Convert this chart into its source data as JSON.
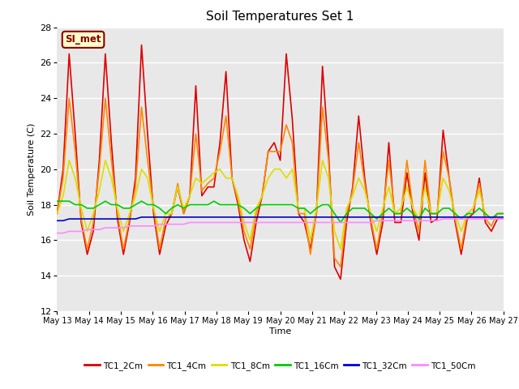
{
  "title": "Soil Temperatures Set 1",
  "xlabel": "Time",
  "ylabel": "Soil Temperature (C)",
  "ylim": [
    12,
    28
  ],
  "yticks": [
    12,
    14,
    16,
    18,
    20,
    22,
    24,
    26,
    28
  ],
  "x_labels": [
    "May 13",
    "May 14",
    "May 15",
    "May 16",
    "May 17",
    "May 18",
    "May 19",
    "May 20",
    "May 21",
    "May 22",
    "May 23",
    "May 24",
    "May 25",
    "May 26",
    "May 27"
  ],
  "annotation_text": "SI_met",
  "annotation_bg": "#ffffcc",
  "annotation_border": "#880000",
  "plot_bg": "#e8e8e8",
  "fig_bg": "#ffffff",
  "grid_color": "#ffffff",
  "series_colors": {
    "TC1_2Cm": "#dd0000",
    "TC1_4Cm": "#ff8800",
    "TC1_8Cm": "#dddd00",
    "TC1_16Cm": "#00cc00",
    "TC1_32Cm": "#0000cc",
    "TC1_50Cm": "#ff88ff"
  },
  "tc1_2cm": [
    17.5,
    20.0,
    26.5,
    22.0,
    17.0,
    15.2,
    16.5,
    20.5,
    26.5,
    21.5,
    17.2,
    15.2,
    17.0,
    19.5,
    27.0,
    22.0,
    17.5,
    15.2,
    16.8,
    17.5,
    19.0,
    17.5,
    18.5,
    24.7,
    18.5,
    19.0,
    19.0,
    21.5,
    25.5,
    19.5,
    18.0,
    16.0,
    14.8,
    17.0,
    18.5,
    21.0,
    21.5,
    20.5,
    26.5,
    22.8,
    17.5,
    17.0,
    15.5,
    17.5,
    25.8,
    21.0,
    14.5,
    13.8,
    17.0,
    19.0,
    23.0,
    19.5,
    17.0,
    15.2,
    17.0,
    21.5,
    17.0,
    17.0,
    19.8,
    17.5,
    16.0,
    19.8,
    17.0,
    17.2,
    22.2,
    19.5,
    17.0,
    15.2,
    17.2,
    17.5,
    19.5,
    17.0,
    16.5,
    17.2,
    17.2
  ],
  "tc1_4cm": [
    17.5,
    19.5,
    24.0,
    21.0,
    17.2,
    15.5,
    17.0,
    20.0,
    24.0,
    20.5,
    17.5,
    15.5,
    17.2,
    19.0,
    23.5,
    20.5,
    17.8,
    15.5,
    17.2,
    17.5,
    19.2,
    17.5,
    18.5,
    22.0,
    18.8,
    19.2,
    19.5,
    21.0,
    23.0,
    19.5,
    18.2,
    16.5,
    15.5,
    17.5,
    18.5,
    21.0,
    21.0,
    21.0,
    22.5,
    21.5,
    17.5,
    17.5,
    15.2,
    17.5,
    23.5,
    20.5,
    15.0,
    14.5,
    17.5,
    18.8,
    21.5,
    19.2,
    17.2,
    15.5,
    17.5,
    20.5,
    17.5,
    17.5,
    20.5,
    17.8,
    16.5,
    20.5,
    17.5,
    17.5,
    21.0,
    19.5,
    17.2,
    15.5,
    17.5,
    17.8,
    19.2,
    17.2,
    16.8,
    17.5,
    17.5
  ],
  "tc1_8cm": [
    17.5,
    18.5,
    20.5,
    19.5,
    17.8,
    16.5,
    17.5,
    18.8,
    20.5,
    19.5,
    17.8,
    16.5,
    17.5,
    18.5,
    20.0,
    19.5,
    17.8,
    16.5,
    17.5,
    17.5,
    19.0,
    17.8,
    18.5,
    19.5,
    19.2,
    19.5,
    19.8,
    20.0,
    19.5,
    19.5,
    18.5,
    17.0,
    16.0,
    17.8,
    18.5,
    19.5,
    20.0,
    20.0,
    19.5,
    20.0,
    17.8,
    17.8,
    16.0,
    17.8,
    20.5,
    19.5,
    16.5,
    15.5,
    17.8,
    18.5,
    19.5,
    18.8,
    17.5,
    16.5,
    17.8,
    19.0,
    17.5,
    17.8,
    19.0,
    17.8,
    17.2,
    19.0,
    17.5,
    17.5,
    19.5,
    18.8,
    17.5,
    16.5,
    17.5,
    17.8,
    18.8,
    17.5,
    17.2,
    17.5,
    17.5
  ],
  "tc1_16cm": [
    18.2,
    18.2,
    18.2,
    18.0,
    18.0,
    17.8,
    17.8,
    18.0,
    18.2,
    18.0,
    18.0,
    17.8,
    17.8,
    18.0,
    18.2,
    18.0,
    18.0,
    17.8,
    17.5,
    17.8,
    18.0,
    17.8,
    18.0,
    18.0,
    18.0,
    18.0,
    18.2,
    18.0,
    18.0,
    18.0,
    18.0,
    17.8,
    17.5,
    17.8,
    18.0,
    18.0,
    18.0,
    18.0,
    18.0,
    18.0,
    17.8,
    17.8,
    17.5,
    17.8,
    18.0,
    18.0,
    17.5,
    17.0,
    17.5,
    17.8,
    17.8,
    17.8,
    17.5,
    17.2,
    17.5,
    17.8,
    17.5,
    17.5,
    17.8,
    17.5,
    17.2,
    17.8,
    17.5,
    17.5,
    17.8,
    17.8,
    17.5,
    17.2,
    17.5,
    17.5,
    17.8,
    17.5,
    17.2,
    17.5,
    17.5
  ],
  "tc1_32cm": [
    17.1,
    17.1,
    17.2,
    17.2,
    17.2,
    17.2,
    17.2,
    17.2,
    17.2,
    17.2,
    17.2,
    17.2,
    17.2,
    17.2,
    17.3,
    17.3,
    17.3,
    17.3,
    17.3,
    17.3,
    17.3,
    17.3,
    17.3,
    17.3,
    17.3,
    17.3,
    17.3,
    17.3,
    17.3,
    17.3,
    17.3,
    17.3,
    17.3,
    17.3,
    17.3,
    17.3,
    17.3,
    17.3,
    17.3,
    17.3,
    17.3,
    17.3,
    17.3,
    17.3,
    17.3,
    17.3,
    17.3,
    17.3,
    17.3,
    17.3,
    17.3,
    17.3,
    17.3,
    17.3,
    17.3,
    17.3,
    17.3,
    17.3,
    17.3,
    17.3,
    17.3,
    17.3,
    17.3,
    17.3,
    17.3,
    17.3,
    17.3,
    17.3,
    17.3,
    17.3,
    17.3,
    17.3,
    17.3,
    17.3,
    17.3
  ],
  "tc1_50cm": [
    16.4,
    16.4,
    16.5,
    16.5,
    16.5,
    16.6,
    16.6,
    16.6,
    16.7,
    16.7,
    16.7,
    16.7,
    16.8,
    16.8,
    16.8,
    16.8,
    16.8,
    16.9,
    16.9,
    16.9,
    16.9,
    16.9,
    17.0,
    17.0,
    17.0,
    17.0,
    17.0,
    17.0,
    17.0,
    17.0,
    17.0,
    17.0,
    17.0,
    17.0,
    17.0,
    17.0,
    17.0,
    17.0,
    17.0,
    17.0,
    17.0,
    17.0,
    17.0,
    17.0,
    17.0,
    17.0,
    17.0,
    17.0,
    17.0,
    17.0,
    17.0,
    17.0,
    17.0,
    17.1,
    17.1,
    17.1,
    17.1,
    17.1,
    17.1,
    17.1,
    17.1,
    17.1,
    17.1,
    17.1,
    17.2,
    17.2,
    17.2,
    17.2,
    17.2,
    17.2,
    17.2,
    17.2,
    17.2,
    17.2,
    17.2
  ]
}
